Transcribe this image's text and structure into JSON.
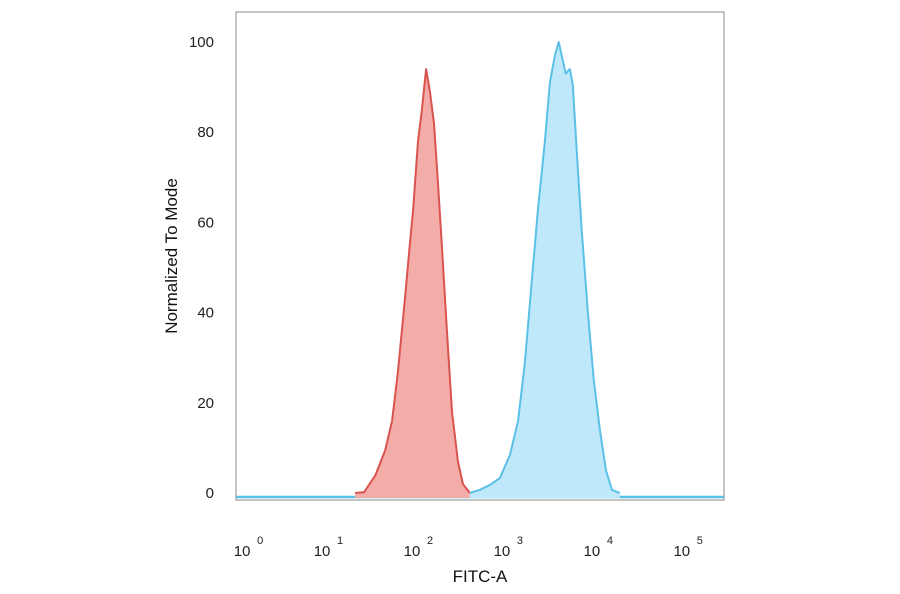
{
  "chart_data": {
    "type": "area",
    "title": "",
    "xlabel": "FITC-A",
    "ylabel": "Normalized To Mode",
    "x_scale": "log",
    "xlim": [
      0.9,
      240000
    ],
    "ylim": [
      0,
      106
    ],
    "x_ticks": [
      {
        "base": "10",
        "exp": "0",
        "value": 1
      },
      {
        "base": "10",
        "exp": "1",
        "value": 10
      },
      {
        "base": "10",
        "exp": "2",
        "value": 100
      },
      {
        "base": "10",
        "exp": "3",
        "value": 1000
      },
      {
        "base": "10",
        "exp": "4",
        "value": 10000
      },
      {
        "base": "10",
        "exp": "5",
        "value": 100000
      }
    ],
    "y_ticks": [
      0,
      20,
      40,
      60,
      80,
      100
    ],
    "grid": false,
    "legend": "none",
    "series": [
      {
        "color": "#d9534f",
        "fill": "#f4aca8",
        "x": [
          19,
          24,
          32,
          41,
          49,
          57,
          68,
          77,
          84,
          95,
          105,
          117,
          129,
          143,
          158,
          176,
          199,
          227,
          264,
          300,
          359
        ],
        "y": [
          0,
          0.2,
          4,
          9.5,
          16,
          27,
          43,
          55,
          63,
          78,
          85,
          94,
          89,
          82,
          69,
          54,
          36,
          18,
          7,
          2,
          0
        ]
      },
      {
        "color": "#5bc0e8",
        "fill": "#bfe9fb",
        "x": [
          359,
          464,
          599,
          771,
          1000,
          1233,
          1468,
          1750,
          2050,
          2450,
          2780,
          3160,
          3490,
          3860,
          4180,
          4640,
          5000,
          5530,
          6300,
          7360,
          8560,
          10000,
          11700,
          13600,
          16700
        ],
        "y": [
          0,
          0.7,
          1.8,
          3.3,
          8.4,
          16,
          29,
          47,
          63,
          78,
          91,
          97,
          100,
          96,
          93,
          94,
          90.5,
          76,
          58,
          40,
          25,
          14,
          5,
          0.7,
          0
        ]
      }
    ]
  }
}
